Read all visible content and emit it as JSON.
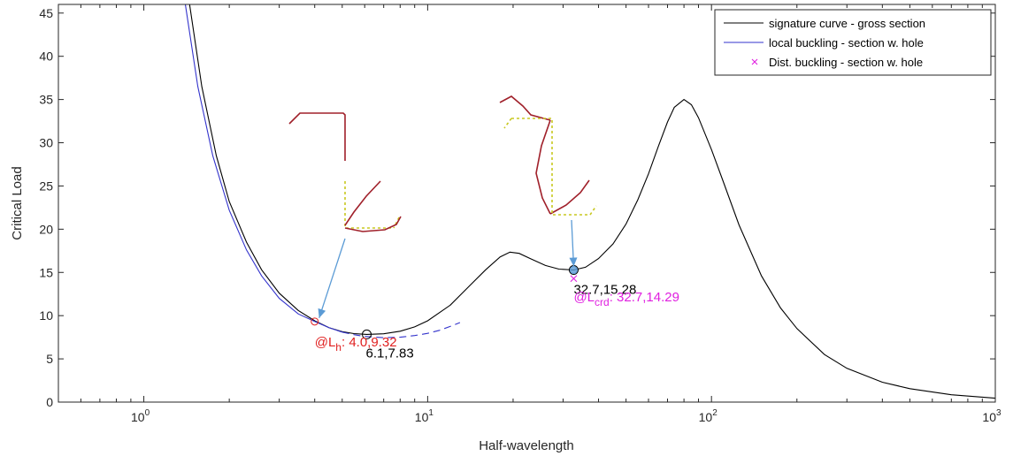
{
  "chart_data": {
    "type": "line",
    "title": "",
    "xlabel": "Half-wavelength",
    "ylabel": "Critical Load",
    "xscale": "log",
    "xlim": [
      0.5,
      1000
    ],
    "ylim": [
      0,
      46
    ],
    "x_ticks": [
      {
        "value": 1,
        "base": "10",
        "exp": "0"
      },
      {
        "value": 10,
        "base": "10",
        "exp": "1"
      },
      {
        "value": 100,
        "base": "10",
        "exp": "2"
      },
      {
        "value": 1000,
        "base": "10",
        "exp": "3"
      }
    ],
    "y_ticks": [
      0,
      5,
      10,
      15,
      20,
      25,
      30,
      35,
      40,
      45
    ],
    "grid": false,
    "legend_position": "top-right",
    "series": [
      {
        "name": "signature curve - gross section",
        "color": "#000000",
        "style": "solid",
        "points": [
          [
            1.45,
            46
          ],
          [
            1.6,
            36.5
          ],
          [
            1.8,
            28.5
          ],
          [
            2.0,
            23.2
          ],
          [
            2.3,
            18.5
          ],
          [
            2.6,
            15.3
          ],
          [
            3.0,
            12.6
          ],
          [
            3.5,
            10.6
          ],
          [
            4.0,
            9.4
          ],
          [
            4.5,
            8.6
          ],
          [
            5.0,
            8.15
          ],
          [
            5.5,
            7.92
          ],
          [
            6.1,
            7.83
          ],
          [
            7.0,
            7.9
          ],
          [
            8.0,
            8.2
          ],
          [
            9.0,
            8.7
          ],
          [
            10.0,
            9.4
          ],
          [
            12.0,
            11.2
          ],
          [
            14.0,
            13.4
          ],
          [
            16.0,
            15.3
          ],
          [
            18.0,
            16.8
          ],
          [
            19.5,
            17.35
          ],
          [
            21.0,
            17.2
          ],
          [
            23.0,
            16.6
          ],
          [
            26.0,
            15.8
          ],
          [
            29.0,
            15.38
          ],
          [
            32.7,
            15.28
          ],
          [
            36.0,
            15.6
          ],
          [
            40.0,
            16.6
          ],
          [
            45.0,
            18.3
          ],
          [
            50.0,
            20.6
          ],
          [
            55.0,
            23.4
          ],
          [
            60.0,
            26.4
          ],
          [
            65.0,
            29.6
          ],
          [
            70.0,
            32.4
          ],
          [
            74.0,
            34.1
          ],
          [
            80.0,
            35.0
          ],
          [
            85.0,
            34.4
          ],
          [
            90.0,
            32.9
          ],
          [
            100.0,
            29.2
          ],
          [
            110.0,
            25.5
          ],
          [
            125.0,
            20.5
          ],
          [
            150.0,
            14.6
          ],
          [
            175.0,
            10.9
          ],
          [
            200.0,
            8.5
          ],
          [
            250.0,
            5.5
          ],
          [
            300.0,
            3.9
          ],
          [
            400.0,
            2.3
          ],
          [
            500.0,
            1.55
          ],
          [
            700.0,
            0.85
          ],
          [
            1000.0,
            0.45
          ]
        ]
      },
      {
        "name": "local buckling - section w. hole",
        "color": "#3333cc",
        "style": "solid_then_dashed",
        "points": [
          [
            1.4,
            46
          ],
          [
            1.55,
            36.5
          ],
          [
            1.75,
            28.5
          ],
          [
            2.0,
            22.2
          ],
          [
            2.3,
            17.6
          ],
          [
            2.6,
            14.6
          ],
          [
            3.0,
            12.0
          ],
          [
            3.5,
            10.2
          ],
          [
            4.0,
            9.32
          ],
          [
            4.5,
            8.6
          ],
          [
            5.0,
            8.1
          ],
          [
            5.5,
            7.8
          ],
          [
            6.0,
            7.6
          ],
          [
            7.0,
            7.45
          ],
          [
            8.0,
            7.5
          ],
          [
            9.0,
            7.7
          ],
          [
            10.0,
            7.95
          ],
          [
            11.0,
            8.3
          ],
          [
            12.0,
            8.75
          ],
          [
            13.0,
            9.2
          ]
        ],
        "dash_from_x": 5.0
      },
      {
        "name": "Dist. buckling - section w. hole",
        "color": "#e020e0",
        "style": "marker-x",
        "points": [
          [
            32.7,
            14.29
          ]
        ]
      }
    ],
    "annotations": {
      "min_local_gross": {
        "x": 6.1,
        "y": 7.83,
        "text": "6.1,7.83"
      },
      "min_dist_gross": {
        "x": 32.7,
        "y": 15.28,
        "text": "32.7,15.28"
      },
      "local_hole": {
        "x": 4.0,
        "y": 9.32,
        "prefix": "@L",
        "sub": "h",
        "value": ": 4.0,9.32"
      },
      "dist_hole": {
        "x": 32.7,
        "y": 14.29,
        "prefix": "@L",
        "sub": "crd",
        "value": ": 32.7,14.29"
      }
    },
    "colors": {
      "gross": "#000000",
      "local": "#3333cc",
      "dist": "#e020e0",
      "local_label": "#e02020",
      "arrow": "#5b9bd5",
      "mode_shape": "#a0202a",
      "mode_ref": "#c8c820"
    }
  }
}
